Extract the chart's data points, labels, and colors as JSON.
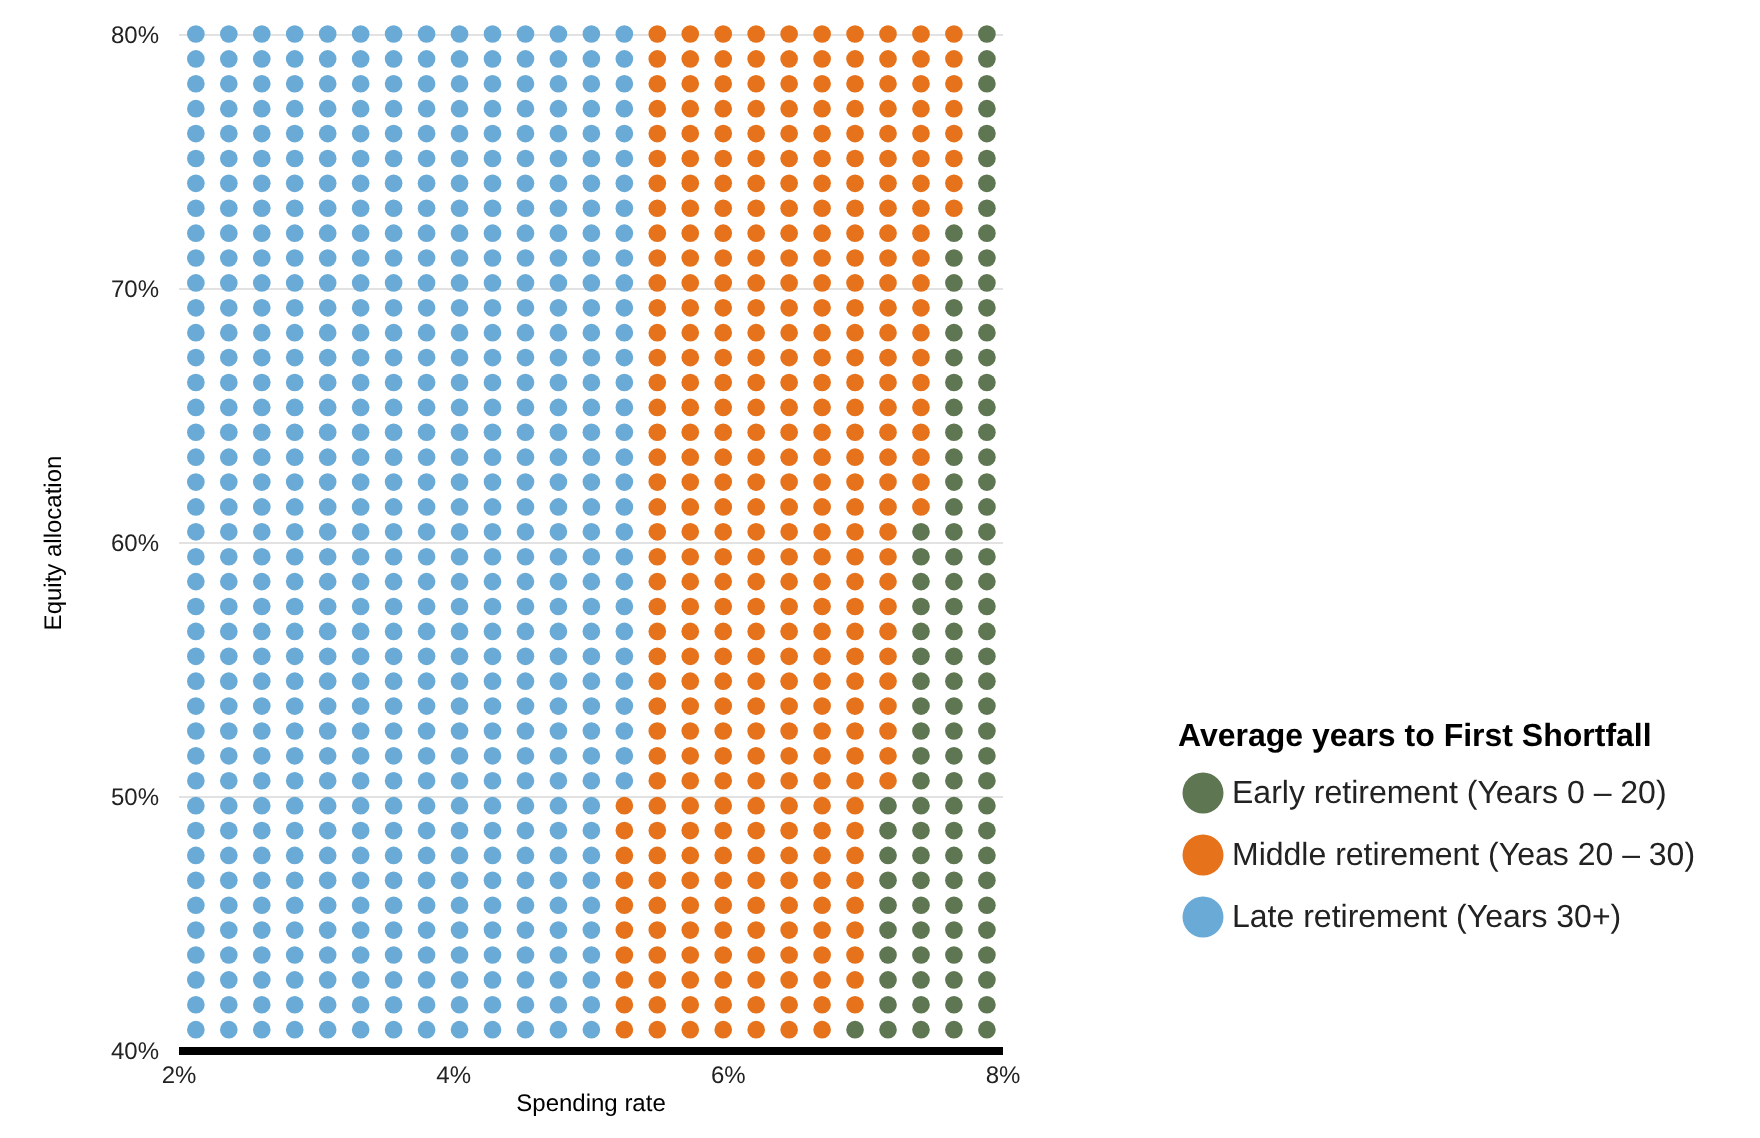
{
  "chart_data": {
    "type": "scatter",
    "xlabel": "Spending rate",
    "ylabel": "Equity allocation",
    "legend_title": "Average years to First Shortfall",
    "legend": "right",
    "grid": "y",
    "marker": "circle",
    "xlim": [
      2,
      8
    ],
    "ylim": [
      40,
      80
    ],
    "xticks": [
      {
        "value": 2,
        "label": "2%"
      },
      {
        "value": 4,
        "label": "4%"
      },
      {
        "value": 6,
        "label": "6%"
      },
      {
        "value": 8,
        "label": "8%"
      }
    ],
    "yticks": [
      {
        "value": 40,
        "label": "40%"
      },
      {
        "value": 50,
        "label": "50%"
      },
      {
        "value": 60,
        "label": "60%"
      },
      {
        "value": 70,
        "label": "70%"
      },
      {
        "value": 80,
        "label": "80%"
      }
    ],
    "series": [
      {
        "name": "Early retirement (Years 0 – 20)",
        "color": "#5e7651",
        "x": [
          7.89,
          7.89,
          7.89,
          7.89,
          7.89,
          7.89,
          7.89,
          7.89,
          7.65,
          7.89,
          7.65,
          7.89,
          7.65,
          7.89,
          7.65,
          7.89,
          7.65,
          7.89,
          7.65,
          7.89,
          7.65,
          7.89,
          7.65,
          7.89,
          7.65,
          7.89,
          7.65,
          7.89,
          7.65,
          7.89,
          7.65,
          7.89,
          7.41,
          7.65,
          7.89,
          7.41,
          7.65,
          7.89,
          7.41,
          7.65,
          7.89,
          7.41,
          7.65,
          7.89,
          7.41,
          7.65,
          7.89,
          7.41,
          7.65,
          7.89,
          7.41,
          7.65,
          7.89,
          7.41,
          7.65,
          7.89,
          7.41,
          7.65,
          7.89,
          7.41,
          7.65,
          7.89,
          7.41,
          7.65,
          7.89,
          7.17,
          7.41,
          7.65,
          7.89,
          7.17,
          7.41,
          7.65,
          7.89,
          7.17,
          7.41,
          7.65,
          7.89,
          7.17,
          7.41,
          7.65,
          7.89,
          7.17,
          7.41,
          7.65,
          7.89,
          7.17,
          7.41,
          7.65,
          7.89,
          7.17,
          7.41,
          7.65,
          7.89,
          7.17,
          7.41,
          7.65,
          7.89,
          7.17,
          7.41,
          7.65,
          7.89,
          6.93,
          7.17,
          7.41,
          7.65,
          7.89
        ],
        "values": [
          80,
          79.02,
          78.04,
          77.06,
          76.08,
          75.1,
          74.12,
          73.14,
          72.16,
          72.16,
          71.18,
          71.18,
          70.2,
          70.2,
          69.22,
          69.22,
          68.24,
          68.24,
          67.26,
          67.26,
          66.28,
          66.28,
          65.3,
          65.3,
          64.32,
          64.32,
          63.34,
          63.34,
          62.36,
          62.36,
          61.38,
          61.38,
          60.4,
          60.4,
          60.4,
          59.42,
          59.42,
          59.42,
          58.44,
          58.44,
          58.44,
          57.46,
          57.46,
          57.46,
          56.48,
          56.48,
          56.48,
          55.5,
          55.5,
          55.5,
          54.52,
          54.52,
          54.52,
          53.54,
          53.54,
          53.54,
          52.56,
          52.56,
          52.56,
          51.58,
          51.58,
          51.58,
          50.6,
          50.6,
          50.6,
          49.62,
          49.62,
          49.62,
          49.62,
          48.64,
          48.64,
          48.64,
          48.64,
          47.66,
          47.66,
          47.66,
          47.66,
          46.68,
          46.68,
          46.68,
          46.68,
          45.7,
          45.7,
          45.7,
          45.7,
          44.72,
          44.72,
          44.72,
          44.72,
          43.74,
          43.74,
          43.74,
          43.74,
          42.76,
          42.76,
          42.76,
          42.76,
          41.78,
          41.78,
          41.78,
          41.78,
          40.8,
          40.8,
          40.8,
          40.8,
          40.8
        ]
      },
      {
        "name": "Middle retirement (Yeas 20 – 30)",
        "color": "#e6731c",
        "x": [
          5.49,
          5.73,
          5.97,
          6.21,
          6.45,
          6.69,
          6.93,
          7.17,
          7.41,
          7.65,
          5.49,
          5.73,
          5.97,
          6.21,
          6.45,
          6.69,
          6.93,
          7.17,
          7.41,
          7.65,
          5.49,
          5.73,
          5.97,
          6.21,
          6.45,
          6.69,
          6.93,
          7.17,
          7.41,
          7.65,
          5.49,
          5.73,
          5.97,
          6.21,
          6.45,
          6.69,
          6.93,
          7.17,
          7.41,
          7.65,
          5.49,
          5.73,
          5.97,
          6.21,
          6.45,
          6.69,
          6.93,
          7.17,
          7.41,
          7.65,
          5.49,
          5.73,
          5.97,
          6.21,
          6.45,
          6.69,
          6.93,
          7.17,
          7.41,
          7.65,
          5.49,
          5.73,
          5.97,
          6.21,
          6.45,
          6.69,
          6.93,
          7.17,
          7.41,
          7.65,
          5.49,
          5.73,
          5.97,
          6.21,
          6.45,
          6.69,
          6.93,
          7.17,
          7.41,
          7.65,
          5.49,
          5.73,
          5.97,
          6.21,
          6.45,
          6.69,
          6.93,
          7.17,
          7.41,
          5.49,
          5.73,
          5.97,
          6.21,
          6.45,
          6.69,
          6.93,
          7.17,
          7.41,
          5.49,
          5.73,
          5.97,
          6.21,
          6.45,
          6.69,
          6.93,
          7.17,
          7.41,
          5.49,
          5.73,
          5.97,
          6.21,
          6.45,
          6.69,
          6.93,
          7.17,
          7.41,
          5.49,
          5.73,
          5.97,
          6.21,
          6.45,
          6.69,
          6.93,
          7.17,
          7.41,
          5.49,
          5.73,
          5.97,
          6.21,
          6.45,
          6.69,
          6.93,
          7.17,
          7.41,
          5.49,
          5.73,
          5.97,
          6.21,
          6.45,
          6.69,
          6.93,
          7.17,
          7.41,
          5.49,
          5.73,
          5.97,
          6.21,
          6.45,
          6.69,
          6.93,
          7.17,
          7.41,
          5.49,
          5.73,
          5.97,
          6.21,
          6.45,
          6.69,
          6.93,
          7.17,
          7.41,
          5.49,
          5.73,
          5.97,
          6.21,
          6.45,
          6.69,
          6.93,
          7.17,
          7.41,
          5.49,
          5.73,
          5.97,
          6.21,
          6.45,
          6.69,
          6.93,
          7.17,
          7.41,
          5.49,
          5.73,
          5.97,
          6.21,
          6.45,
          6.69,
          6.93,
          7.17,
          7.41,
          5.49,
          5.73,
          5.97,
          6.21,
          6.45,
          6.69,
          6.93,
          7.17,
          5.49,
          5.73,
          5.97,
          6.21,
          6.45,
          6.69,
          6.93,
          7.17,
          5.49,
          5.73,
          5.97,
          6.21,
          6.45,
          6.69,
          6.93,
          7.17,
          5.49,
          5.73,
          5.97,
          6.21,
          6.45,
          6.69,
          6.93,
          7.17,
          5.49,
          5.73,
          5.97,
          6.21,
          6.45,
          6.69,
          6.93,
          7.17,
          5.49,
          5.73,
          5.97,
          6.21,
          6.45,
          6.69,
          6.93,
          7.17,
          5.49,
          5.73,
          5.97,
          6.21,
          6.45,
          6.69,
          6.93,
          7.17,
          5.49,
          5.73,
          5.97,
          6.21,
          6.45,
          6.69,
          6.93,
          7.17,
          5.49,
          5.73,
          5.97,
          6.21,
          6.45,
          6.69,
          6.93,
          7.17,
          5.49,
          5.73,
          5.97,
          6.21,
          6.45,
          6.69,
          6.93,
          7.17,
          5.49,
          5.73,
          5.97,
          6.21,
          6.45,
          6.69,
          6.93,
          7.17,
          5.25,
          5.49,
          5.73,
          5.97,
          6.21,
          6.45,
          6.69,
          6.93,
          5.25,
          5.49,
          5.73,
          5.97,
          6.21,
          6.45,
          6.69,
          6.93,
          5.25,
          5.49,
          5.73,
          5.97,
          6.21,
          6.45,
          6.69,
          6.93,
          5.25,
          5.49,
          5.73,
          5.97,
          6.21,
          6.45,
          6.69,
          6.93,
          5.25,
          5.49,
          5.73,
          5.97,
          6.21,
          6.45,
          6.69,
          6.93,
          5.25,
          5.49,
          5.73,
          5.97,
          6.21,
          6.45,
          6.69,
          6.93,
          5.25,
          5.49,
          5.73,
          5.97,
          6.21,
          6.45,
          6.69,
          6.93,
          5.25,
          5.49,
          5.73,
          5.97,
          6.21,
          6.45,
          6.69,
          6.93,
          5.25,
          5.49,
          5.73,
          5.97,
          6.21,
          6.45,
          6.69,
          6.93,
          5.25,
          5.49,
          5.73,
          5.97,
          6.21,
          6.45,
          6.69
        ],
        "values": [
          80,
          80,
          80,
          80,
          80,
          80,
          80,
          80,
          80,
          80,
          79.02,
          79.02,
          79.02,
          79.02,
          79.02,
          79.02,
          79.02,
          79.02,
          79.02,
          79.02,
          78.04,
          78.04,
          78.04,
          78.04,
          78.04,
          78.04,
          78.04,
          78.04,
          78.04,
          78.04,
          77.06,
          77.06,
          77.06,
          77.06,
          77.06,
          77.06,
          77.06,
          77.06,
          77.06,
          77.06,
          76.08,
          76.08,
          76.08,
          76.08,
          76.08,
          76.08,
          76.08,
          76.08,
          76.08,
          76.08,
          75.1,
          75.1,
          75.1,
          75.1,
          75.1,
          75.1,
          75.1,
          75.1,
          75.1,
          75.1,
          74.12,
          74.12,
          74.12,
          74.12,
          74.12,
          74.12,
          74.12,
          74.12,
          74.12,
          74.12,
          73.14,
          73.14,
          73.14,
          73.14,
          73.14,
          73.14,
          73.14,
          73.14,
          73.14,
          73.14,
          72.16,
          72.16,
          72.16,
          72.16,
          72.16,
          72.16,
          72.16,
          72.16,
          72.16,
          71.18,
          71.18,
          71.18,
          71.18,
          71.18,
          71.18,
          71.18,
          71.18,
          71.18,
          70.2,
          70.2,
          70.2,
          70.2,
          70.2,
          70.2,
          70.2,
          70.2,
          70.2,
          69.22,
          69.22,
          69.22,
          69.22,
          69.22,
          69.22,
          69.22,
          69.22,
          69.22,
          68.24,
          68.24,
          68.24,
          68.24,
          68.24,
          68.24,
          68.24,
          68.24,
          68.24,
          67.26,
          67.26,
          67.26,
          67.26,
          67.26,
          67.26,
          67.26,
          67.26,
          67.26,
          66.28,
          66.28,
          66.28,
          66.28,
          66.28,
          66.28,
          66.28,
          66.28,
          66.28,
          65.3,
          65.3,
          65.3,
          65.3,
          65.3,
          65.3,
          65.3,
          65.3,
          65.3,
          64.32,
          64.32,
          64.32,
          64.32,
          64.32,
          64.32,
          64.32,
          64.32,
          64.32,
          63.34,
          63.34,
          63.34,
          63.34,
          63.34,
          63.34,
          63.34,
          63.34,
          63.34,
          62.36,
          62.36,
          62.36,
          62.36,
          62.36,
          62.36,
          62.36,
          62.36,
          62.36,
          61.38,
          61.38,
          61.38,
          61.38,
          61.38,
          61.38,
          61.38,
          61.38,
          61.38,
          60.4,
          60.4,
          60.4,
          60.4,
          60.4,
          60.4,
          60.4,
          60.4,
          59.42,
          59.42,
          59.42,
          59.42,
          59.42,
          59.42,
          59.42,
          59.42,
          58.44,
          58.44,
          58.44,
          58.44,
          58.44,
          58.44,
          58.44,
          58.44,
          57.46,
          57.46,
          57.46,
          57.46,
          57.46,
          57.46,
          57.46,
          57.46,
          56.48,
          56.48,
          56.48,
          56.48,
          56.48,
          56.48,
          56.48,
          56.48,
          55.5,
          55.5,
          55.5,
          55.5,
          55.5,
          55.5,
          55.5,
          55.5,
          54.52,
          54.52,
          54.52,
          54.52,
          54.52,
          54.52,
          54.52,
          54.52,
          53.54,
          53.54,
          53.54,
          53.54,
          53.54,
          53.54,
          53.54,
          53.54,
          52.56,
          52.56,
          52.56,
          52.56,
          52.56,
          52.56,
          52.56,
          52.56,
          51.58,
          51.58,
          51.58,
          51.58,
          51.58,
          51.58,
          51.58,
          51.58,
          50.6,
          50.6,
          50.6,
          50.6,
          50.6,
          50.6,
          50.6,
          50.6,
          49.62,
          49.62,
          49.62,
          49.62,
          49.62,
          49.62,
          49.62,
          49.62,
          48.64,
          48.64,
          48.64,
          48.64,
          48.64,
          48.64,
          48.64,
          48.64,
          47.66,
          47.66,
          47.66,
          47.66,
          47.66,
          47.66,
          47.66,
          47.66,
          46.68,
          46.68,
          46.68,
          46.68,
          46.68,
          46.68,
          46.68,
          46.68,
          45.7,
          45.7,
          45.7,
          45.7,
          45.7,
          45.7,
          45.7,
          45.7,
          44.72,
          44.72,
          44.72,
          44.72,
          44.72,
          44.72,
          44.72,
          44.72,
          43.74,
          43.74,
          43.74,
          43.74,
          43.74,
          43.74,
          43.74,
          43.74,
          42.76,
          42.76,
          42.76,
          42.76,
          42.76,
          42.76,
          42.76,
          42.76,
          41.78,
          41.78,
          41.78,
          41.78,
          41.78,
          41.78,
          41.78,
          41.78,
          40.8,
          40.8,
          40.8,
          40.8,
          40.8,
          40.8,
          40.8
        ]
      },
      {
        "name": "Late retirement (Years 30+)",
        "color": "#6aaad6",
        "x": [
          2.13,
          2.37,
          2.61,
          2.85,
          3.09,
          3.33,
          3.57,
          3.81,
          4.05,
          4.29,
          4.53,
          4.77,
          5.01,
          5.25,
          2.13,
          2.37,
          2.61,
          2.85,
          3.09,
          3.33,
          3.57,
          3.81,
          4.05,
          4.29,
          4.53,
          4.77,
          5.01,
          5.25,
          2.13,
          2.37,
          2.61,
          2.85,
          3.09,
          3.33,
          3.57,
          3.81,
          4.05,
          4.29,
          4.53,
          4.77,
          5.01,
          5.25,
          2.13,
          2.37,
          2.61,
          2.85,
          3.09,
          3.33,
          3.57,
          3.81,
          4.05,
          4.29,
          4.53,
          4.77,
          5.01,
          5.25,
          2.13,
          2.37,
          2.61,
          2.85,
          3.09,
          3.33,
          3.57,
          3.81,
          4.05,
          4.29,
          4.53,
          4.77,
          5.01,
          5.25,
          2.13,
          2.37,
          2.61,
          2.85,
          3.09,
          3.33,
          3.57,
          3.81,
          4.05,
          4.29,
          4.53,
          4.77,
          5.01,
          5.25,
          2.13,
          2.37,
          2.61,
          2.85,
          3.09,
          3.33,
          3.57,
          3.81,
          4.05,
          4.29,
          4.53,
          4.77,
          5.01,
          5.25,
          2.13,
          2.37,
          2.61,
          2.85,
          3.09,
          3.33,
          3.57,
          3.81,
          4.05,
          4.29,
          4.53,
          4.77,
          5.01,
          5.25,
          2.13,
          2.37,
          2.61,
          2.85,
          3.09,
          3.33,
          3.57,
          3.81,
          4.05,
          4.29,
          4.53,
          4.77,
          5.01,
          5.25,
          2.13,
          2.37,
          2.61,
          2.85,
          3.09,
          3.33,
          3.57,
          3.81,
          4.05,
          4.29,
          4.53,
          4.77,
          5.01,
          5.25,
          2.13,
          2.37,
          2.61,
          2.85,
          3.09,
          3.33,
          3.57,
          3.81,
          4.05,
          4.29,
          4.53,
          4.77,
          5.01,
          5.25,
          2.13,
          2.37,
          2.61,
          2.85,
          3.09,
          3.33,
          3.57,
          3.81,
          4.05,
          4.29,
          4.53,
          4.77,
          5.01,
          5.25,
          2.13,
          2.37,
          2.61,
          2.85,
          3.09,
          3.33,
          3.57,
          3.81,
          4.05,
          4.29,
          4.53,
          4.77,
          5.01,
          5.25,
          2.13,
          2.37,
          2.61,
          2.85,
          3.09,
          3.33,
          3.57,
          3.81,
          4.05,
          4.29,
          4.53,
          4.77,
          5.01,
          5.25,
          2.13,
          2.37,
          2.61,
          2.85,
          3.09,
          3.33,
          3.57,
          3.81,
          4.05,
          4.29,
          4.53,
          4.77,
          5.01,
          5.25,
          2.13,
          2.37,
          2.61,
          2.85,
          3.09,
          3.33,
          3.57,
          3.81,
          4.05,
          4.29,
          4.53,
          4.77,
          5.01,
          5.25,
          2.13,
          2.37,
          2.61,
          2.85,
          3.09,
          3.33,
          3.57,
          3.81,
          4.05,
          4.29,
          4.53,
          4.77,
          5.01,
          5.25,
          2.13,
          2.37,
          2.61,
          2.85,
          3.09,
          3.33,
          3.57,
          3.81,
          4.05,
          4.29,
          4.53,
          4.77,
          5.01,
          5.25,
          2.13,
          2.37,
          2.61,
          2.85,
          3.09,
          3.33,
          3.57,
          3.81,
          4.05,
          4.29,
          4.53,
          4.77,
          5.01,
          5.25,
          2.13,
          2.37,
          2.61,
          2.85,
          3.09,
          3.33,
          3.57,
          3.81,
          4.05,
          4.29,
          4.53,
          4.77,
          5.01,
          5.25,
          2.13,
          2.37,
          2.61,
          2.85,
          3.09,
          3.33,
          3.57,
          3.81,
          4.05,
          4.29,
          4.53,
          4.77,
          5.01,
          5.25,
          2.13,
          2.37,
          2.61,
          2.85,
          3.09,
          3.33,
          3.57,
          3.81,
          4.05,
          4.29,
          4.53,
          4.77,
          5.01,
          5.25,
          2.13,
          2.37,
          2.61,
          2.85,
          3.09,
          3.33,
          3.57,
          3.81,
          4.05,
          4.29,
          4.53,
          4.77,
          5.01,
          5.25,
          2.13,
          2.37,
          2.61,
          2.85,
          3.09,
          3.33,
          3.57,
          3.81,
          4.05,
          4.29,
          4.53,
          4.77,
          5.01,
          5.25,
          2.13,
          2.37,
          2.61,
          2.85,
          3.09,
          3.33,
          3.57,
          3.81,
          4.05,
          4.29,
          4.53,
          4.77,
          5.01,
          5.25,
          2.13,
          2.37,
          2.61,
          2.85,
          3.09,
          3.33,
          3.57,
          3.81,
          4.05,
          4.29,
          4.53,
          4.77,
          5.01,
          5.25,
          2.13,
          2.37,
          2.61,
          2.85,
          3.09,
          3.33,
          3.57,
          3.81,
          4.05,
          4.29,
          4.53,
          4.77,
          5.01,
          5.25,
          2.13,
          2.37,
          2.61,
          2.85,
          3.09,
          3.33,
          3.57,
          3.81,
          4.05,
          4.29,
          4.53,
          4.77,
          5.01,
          5.25,
          2.13,
          2.37,
          2.61,
          2.85,
          3.09,
          3.33,
          3.57,
          3.81,
          4.05,
          4.29,
          4.53,
          4.77,
          5.01,
          5.25,
          2.13,
          2.37,
          2.61,
          2.85,
          3.09,
          3.33,
          3.57,
          3.81,
          4.05,
          4.29,
          4.53,
          4.77,
          5.01,
          5.25,
          2.13,
          2.37,
          2.61,
          2.85,
          3.09,
          3.33,
          3.57,
          3.81,
          4.05,
          4.29,
          4.53,
          4.77,
          5.01,
          5.25,
          2.13,
          2.37,
          2.61,
          2.85,
          3.09,
          3.33,
          3.57,
          3.81,
          4.05,
          4.29,
          4.53,
          4.77,
          5.01,
          2.13,
          2.37,
          2.61,
          2.85,
          3.09,
          3.33,
          3.57,
          3.81,
          4.05,
          4.29,
          4.53,
          4.77,
          5.01,
          2.13,
          2.37,
          2.61,
          2.85,
          3.09,
          3.33,
          3.57,
          3.81,
          4.05,
          4.29,
          4.53,
          4.77,
          5.01,
          2.13,
          2.37,
          2.61,
          2.85,
          3.09,
          3.33,
          3.57,
          3.81,
          4.05,
          4.29,
          4.53,
          4.77,
          5.01,
          2.13,
          2.37,
          2.61,
          2.85,
          3.09,
          3.33,
          3.57,
          3.81,
          4.05,
          4.29,
          4.53,
          4.77,
          5.01,
          2.13,
          2.37,
          2.61,
          2.85,
          3.09,
          3.33,
          3.57,
          3.81,
          4.05,
          4.29,
          4.53,
          4.77,
          5.01,
          2.13,
          2.37,
          2.61,
          2.85,
          3.09,
          3.33,
          3.57,
          3.81,
          4.05,
          4.29,
          4.53,
          4.77,
          5.01,
          2.13,
          2.37,
          2.61,
          2.85,
          3.09,
          3.33,
          3.57,
          3.81,
          4.05,
          4.29,
          4.53,
          4.77,
          5.01,
          2.13,
          2.37,
          2.61,
          2.85,
          3.09,
          3.33,
          3.57,
          3.81,
          4.05,
          4.29,
          4.53,
          4.77,
          5.01,
          2.13,
          2.37,
          2.61,
          2.85,
          3.09,
          3.33,
          3.57,
          3.81,
          4.05,
          4.29,
          4.53,
          4.77,
          5.01
        ],
        "values": [
          80,
          80,
          80,
          80,
          80,
          80,
          80,
          80,
          80,
          80,
          80,
          80,
          80,
          80,
          79.02,
          79.02,
          79.02,
          79.02,
          79.02,
          79.02,
          79.02,
          79.02,
          79.02,
          79.02,
          79.02,
          79.02,
          79.02,
          79.02,
          78.04,
          78.04,
          78.04,
          78.04,
          78.04,
          78.04,
          78.04,
          78.04,
          78.04,
          78.04,
          78.04,
          78.04,
          78.04,
          78.04,
          77.06,
          77.06,
          77.06,
          77.06,
          77.06,
          77.06,
          77.06,
          77.06,
          77.06,
          77.06,
          77.06,
          77.06,
          77.06,
          77.06,
          76.08,
          76.08,
          76.08,
          76.08,
          76.08,
          76.08,
          76.08,
          76.08,
          76.08,
          76.08,
          76.08,
          76.08,
          76.08,
          76.08,
          75.1,
          75.1,
          75.1,
          75.1,
          75.1,
          75.1,
          75.1,
          75.1,
          75.1,
          75.1,
          75.1,
          75.1,
          75.1,
          75.1,
          74.12,
          74.12,
          74.12,
          74.12,
          74.12,
          74.12,
          74.12,
          74.12,
          74.12,
          74.12,
          74.12,
          74.12,
          74.12,
          74.12,
          73.14,
          73.14,
          73.14,
          73.14,
          73.14,
          73.14,
          73.14,
          73.14,
          73.14,
          73.14,
          73.14,
          73.14,
          73.14,
          73.14,
          72.16,
          72.16,
          72.16,
          72.16,
          72.16,
          72.16,
          72.16,
          72.16,
          72.16,
          72.16,
          72.16,
          72.16,
          72.16,
          72.16,
          71.18,
          71.18,
          71.18,
          71.18,
          71.18,
          71.18,
          71.18,
          71.18,
          71.18,
          71.18,
          71.18,
          71.18,
          71.18,
          71.18,
          70.2,
          70.2,
          70.2,
          70.2,
          70.2,
          70.2,
          70.2,
          70.2,
          70.2,
          70.2,
          70.2,
          70.2,
          70.2,
          70.2,
          69.22,
          69.22,
          69.22,
          69.22,
          69.22,
          69.22,
          69.22,
          69.22,
          69.22,
          69.22,
          69.22,
          69.22,
          69.22,
          69.22,
          68.24,
          68.24,
          68.24,
          68.24,
          68.24,
          68.24,
          68.24,
          68.24,
          68.24,
          68.24,
          68.24,
          68.24,
          68.24,
          68.24,
          67.26,
          67.26,
          67.26,
          67.26,
          67.26,
          67.26,
          67.26,
          67.26,
          67.26,
          67.26,
          67.26,
          67.26,
          67.26,
          67.26,
          66.28,
          66.28,
          66.28,
          66.28,
          66.28,
          66.28,
          66.28,
          66.28,
          66.28,
          66.28,
          66.28,
          66.28,
          66.28,
          66.28,
          65.3,
          65.3,
          65.3,
          65.3,
          65.3,
          65.3,
          65.3,
          65.3,
          65.3,
          65.3,
          65.3,
          65.3,
          65.3,
          65.3,
          64.32,
          64.32,
          64.32,
          64.32,
          64.32,
          64.32,
          64.32,
          64.32,
          64.32,
          64.32,
          64.32,
          64.32,
          64.32,
          64.32,
          63.34,
          63.34,
          63.34,
          63.34,
          63.34,
          63.34,
          63.34,
          63.34,
          63.34,
          63.34,
          63.34,
          63.34,
          63.34,
          63.34,
          62.36,
          62.36,
          62.36,
          62.36,
          62.36,
          62.36,
          62.36,
          62.36,
          62.36,
          62.36,
          62.36,
          62.36,
          62.36,
          62.36,
          61.38,
          61.38,
          61.38,
          61.38,
          61.38,
          61.38,
          61.38,
          61.38,
          61.38,
          61.38,
          61.38,
          61.38,
          61.38,
          61.38,
          60.4,
          60.4,
          60.4,
          60.4,
          60.4,
          60.4,
          60.4,
          60.4,
          60.4,
          60.4,
          60.4,
          60.4,
          60.4,
          60.4,
          59.42,
          59.42,
          59.42,
          59.42,
          59.42,
          59.42,
          59.42,
          59.42,
          59.42,
          59.42,
          59.42,
          59.42,
          59.42,
          59.42,
          58.44,
          58.44,
          58.44,
          58.44,
          58.44,
          58.44,
          58.44,
          58.44,
          58.44,
          58.44,
          58.44,
          58.44,
          58.44,
          58.44,
          57.46,
          57.46,
          57.46,
          57.46,
          57.46,
          57.46,
          57.46,
          57.46,
          57.46,
          57.46,
          57.46,
          57.46,
          57.46,
          57.46,
          56.48,
          56.48,
          56.48,
          56.48,
          56.48,
          56.48,
          56.48,
          56.48,
          56.48,
          56.48,
          56.48,
          56.48,
          56.48,
          56.48,
          55.5,
          55.5,
          55.5,
          55.5,
          55.5,
          55.5,
          55.5,
          55.5,
          55.5,
          55.5,
          55.5,
          55.5,
          55.5,
          55.5,
          54.52,
          54.52,
          54.52,
          54.52,
          54.52,
          54.52,
          54.52,
          54.52,
          54.52,
          54.52,
          54.52,
          54.52,
          54.52,
          54.52,
          53.54,
          53.54,
          53.54,
          53.54,
          53.54,
          53.54,
          53.54,
          53.54,
          53.54,
          53.54,
          53.54,
          53.54,
          53.54,
          53.54,
          52.56,
          52.56,
          52.56,
          52.56,
          52.56,
          52.56,
          52.56,
          52.56,
          52.56,
          52.56,
          52.56,
          52.56,
          52.56,
          52.56,
          51.58,
          51.58,
          51.58,
          51.58,
          51.58,
          51.58,
          51.58,
          51.58,
          51.58,
          51.58,
          51.58,
          51.58,
          51.58,
          51.58,
          50.6,
          50.6,
          50.6,
          50.6,
          50.6,
          50.6,
          50.6,
          50.6,
          50.6,
          50.6,
          50.6,
          50.6,
          50.6,
          50.6,
          49.62,
          49.62,
          49.62,
          49.62,
          49.62,
          49.62,
          49.62,
          49.62,
          49.62,
          49.62,
          49.62,
          49.62,
          49.62,
          48.64,
          48.64,
          48.64,
          48.64,
          48.64,
          48.64,
          48.64,
          48.64,
          48.64,
          48.64,
          48.64,
          48.64,
          48.64,
          47.66,
          47.66,
          47.66,
          47.66,
          47.66,
          47.66,
          47.66,
          47.66,
          47.66,
          47.66,
          47.66,
          47.66,
          47.66,
          46.68,
          46.68,
          46.68,
          46.68,
          46.68,
          46.68,
          46.68,
          46.68,
          46.68,
          46.68,
          46.68,
          46.68,
          46.68,
          45.7,
          45.7,
          45.7,
          45.7,
          45.7,
          45.7,
          45.7,
          45.7,
          45.7,
          45.7,
          45.7,
          45.7,
          45.7,
          44.72,
          44.72,
          44.72,
          44.72,
          44.72,
          44.72,
          44.72,
          44.72,
          44.72,
          44.72,
          44.72,
          44.72,
          44.72,
          43.74,
          43.74,
          43.74,
          43.74,
          43.74,
          43.74,
          43.74,
          43.74,
          43.74,
          43.74,
          43.74,
          43.74,
          43.74,
          42.76,
          42.76,
          42.76,
          42.76,
          42.76,
          42.76,
          42.76,
          42.76,
          42.76,
          42.76,
          42.76,
          42.76,
          42.76,
          41.78,
          41.78,
          41.78,
          41.78,
          41.78,
          41.78,
          41.78,
          41.78,
          41.78,
          41.78,
          41.78,
          41.78,
          41.78,
          40.8,
          40.8,
          40.8,
          40.8,
          40.8,
          40.8,
          40.8,
          40.8,
          40.8,
          40.8,
          40.8,
          40.8,
          40.8
        ]
      }
    ]
  }
}
